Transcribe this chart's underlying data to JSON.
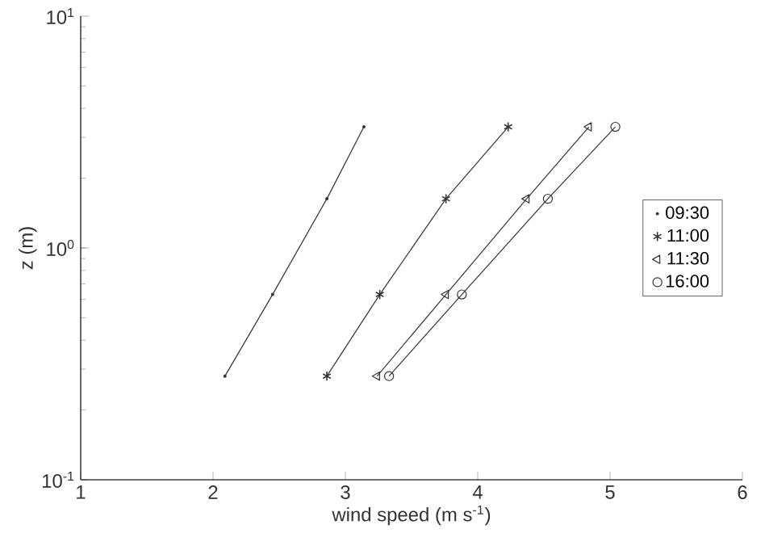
{
  "chart_data": {
    "type": "line",
    "xlabel": "wind speed (m s$^{-1}$)",
    "ylabel": "z (m)",
    "xlim": [
      1,
      6
    ],
    "xticks": [
      1,
      2,
      3,
      4,
      5,
      6
    ],
    "ylim": [
      0.1,
      10
    ],
    "yticks": [
      {
        "value": 0.1,
        "label": "10$^{-1}$"
      },
      {
        "value": 1,
        "label": "10$^{0}$"
      },
      {
        "value": 10,
        "label": "10$^{1}$"
      }
    ],
    "log": "y",
    "legend": "right",
    "grid": false,
    "line_style": "solid",
    "series": [
      {
        "name": "09:30",
        "color": "#333333",
        "marker": "point",
        "x": [
          2.09,
          2.45,
          2.86,
          3.14
        ],
        "values": [
          0.28,
          0.63,
          1.63,
          3.33
        ]
      },
      {
        "name": "11:00",
        "color": "#333333",
        "marker": "cross",
        "x": [
          2.86,
          3.26,
          3.76,
          4.23
        ],
        "values": [
          0.28,
          0.63,
          1.63,
          3.33
        ]
      },
      {
        "name": "11:30",
        "color": "#333333",
        "marker": "triangle",
        "x": [
          3.24,
          3.76,
          4.37,
          4.84
        ],
        "values": [
          0.28,
          0.63,
          1.63,
          3.33
        ]
      },
      {
        "name": "16:00",
        "color": "#333333",
        "marker": "circle",
        "x": [
          3.33,
          3.88,
          4.53,
          5.04
        ],
        "values": [
          0.28,
          0.63,
          1.63,
          3.33
        ]
      }
    ]
  }
}
